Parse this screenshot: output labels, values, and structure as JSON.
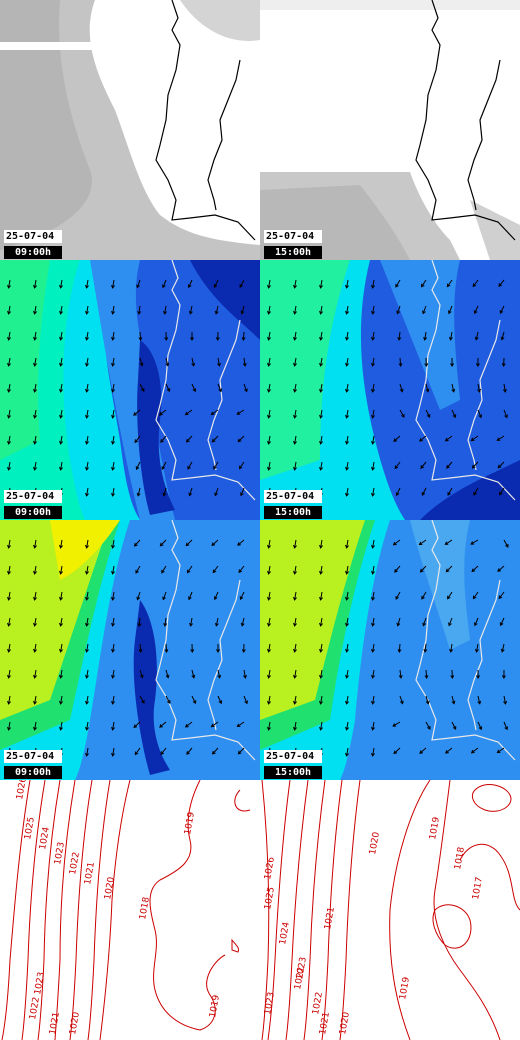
{
  "colors": {
    "coast": "#000000",
    "coast_on_color": "#e8e8e8",
    "cloud": "#bdbdbd",
    "isobar": "#cc0000",
    "wind_arrow": "#000000"
  },
  "rows": [
    {
      "name": "cloud-cover",
      "panels": [
        {
          "date": "25-07-04",
          "time": "09:00h"
        },
        {
          "date": "25-07-04",
          "time": "15:00h"
        }
      ]
    },
    {
      "name": "wind-surface",
      "panels": [
        {
          "date": "25-07-04",
          "time": "09:00h"
        },
        {
          "date": "25-07-04",
          "time": "15:00h"
        }
      ]
    },
    {
      "name": "wind-altitude",
      "panels": [
        {
          "date": "25-07-04",
          "time": "09:00h"
        },
        {
          "date": "25-07-04",
          "time": "15:00h"
        }
      ]
    },
    {
      "name": "pressure",
      "panels": [
        {
          "isobar_labels": [
            "1026",
            "1025",
            "1024",
            "1023",
            "1022",
            "1021",
            "1020",
            "1019",
            "1018",
            "1023",
            "1022",
            "1021",
            "1020",
            "1019"
          ]
        },
        {
          "isobar_labels": [
            "1026",
            "1025",
            "1024",
            "1023",
            "1022",
            "1021",
            "1020",
            "1019",
            "1018",
            "1017",
            "1023",
            "1022",
            "1021",
            "1020",
            "1019"
          ]
        }
      ]
    }
  ]
}
